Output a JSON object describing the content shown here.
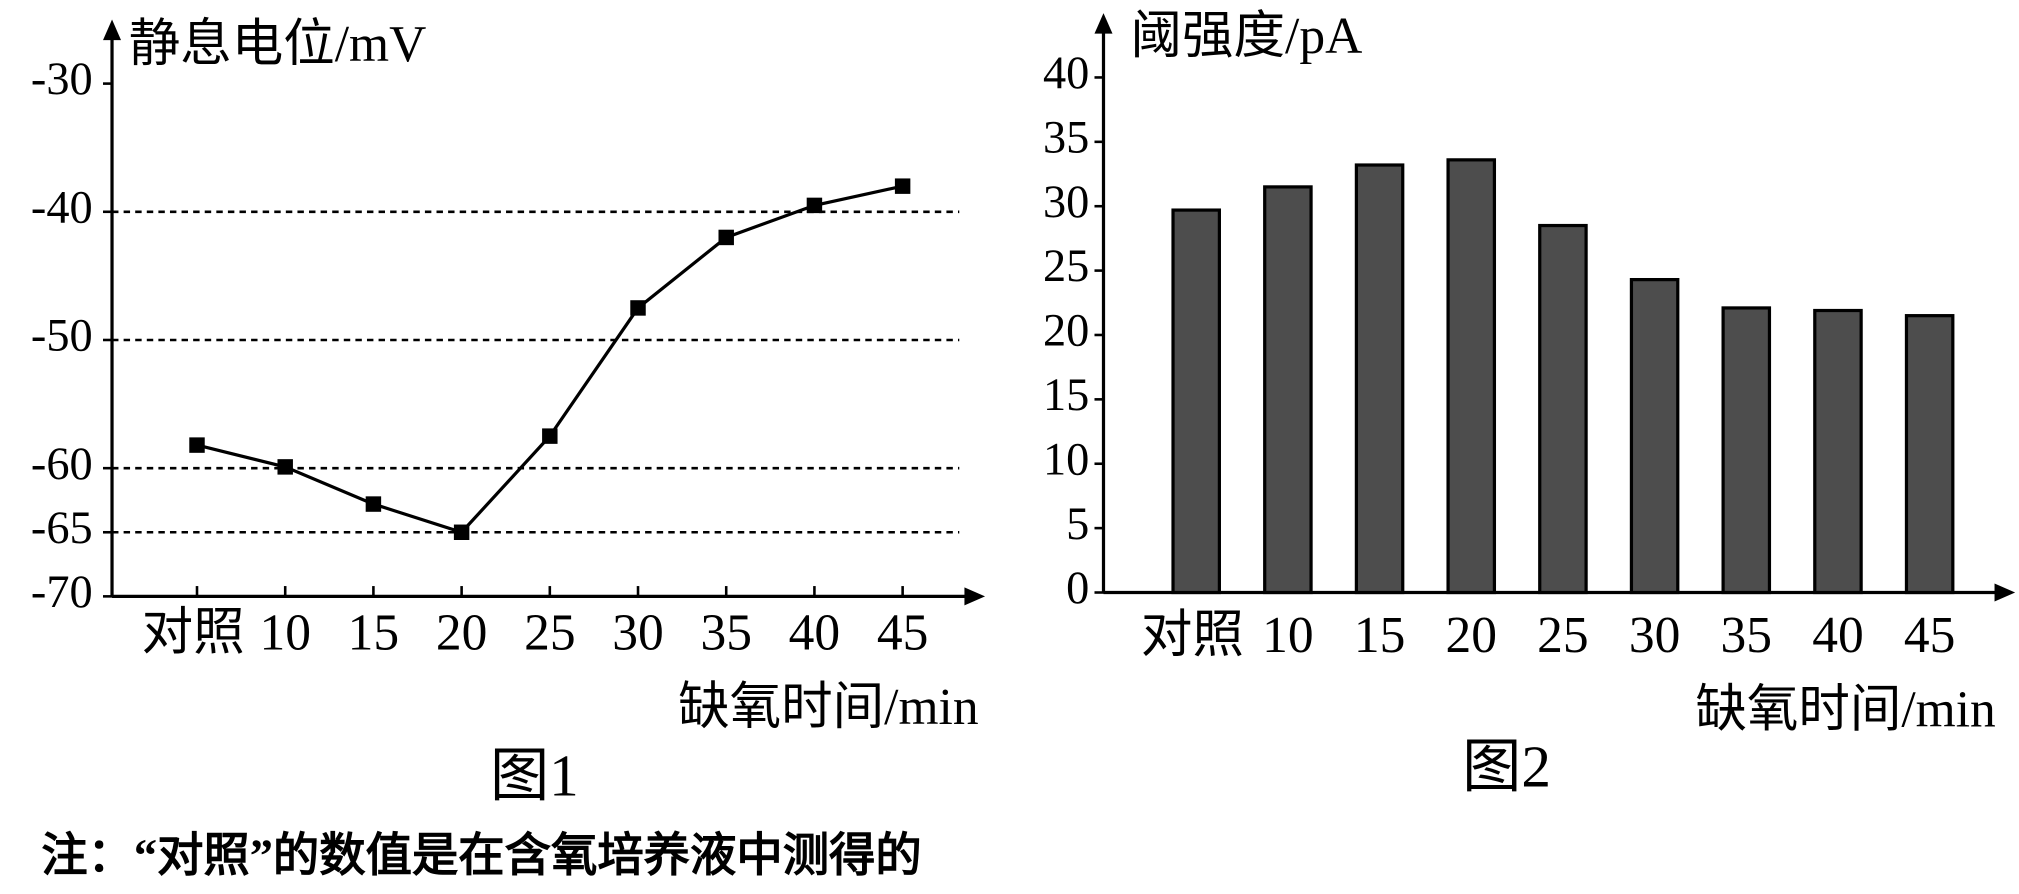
{
  "chart_data": [
    {
      "type": "line",
      "y_label": "静息电位/mV",
      "x_label": "缺氧时间/min",
      "caption": "图1",
      "categories": [
        "对照",
        "10",
        "15",
        "20",
        "25",
        "30",
        "35",
        "40",
        "45"
      ],
      "values": [
        -58.2,
        -59.9,
        -62.8,
        -65,
        -57.5,
        -47.5,
        -42,
        -39.5,
        -38
      ],
      "color": "#000000",
      "ylim": [
        -70,
        -25
      ],
      "yticks": [
        -30,
        -40,
        -50,
        -60,
        -65,
        -70
      ],
      "grid_lines": [
        -40,
        -50,
        -60,
        -65
      ],
      "grid_style": "dashed"
    },
    {
      "type": "bar",
      "y_label": "阈强度/pA",
      "x_label": "缺氧时间/min",
      "caption": "图2",
      "categories": [
        "对照",
        "10",
        "15",
        "20",
        "25",
        "30",
        "35",
        "40",
        "45"
      ],
      "values": [
        29.7,
        31.5,
        33.2,
        33.6,
        28.5,
        24.3,
        22.1,
        21.9,
        21.5
      ],
      "color": "#4d4d4d",
      "ylim": [
        0,
        45
      ],
      "yticks": [
        0,
        5,
        10,
        15,
        20,
        25,
        30,
        35,
        40
      ]
    }
  ],
  "note": "注：“对照”的数值是在含氧培养液中测得的"
}
